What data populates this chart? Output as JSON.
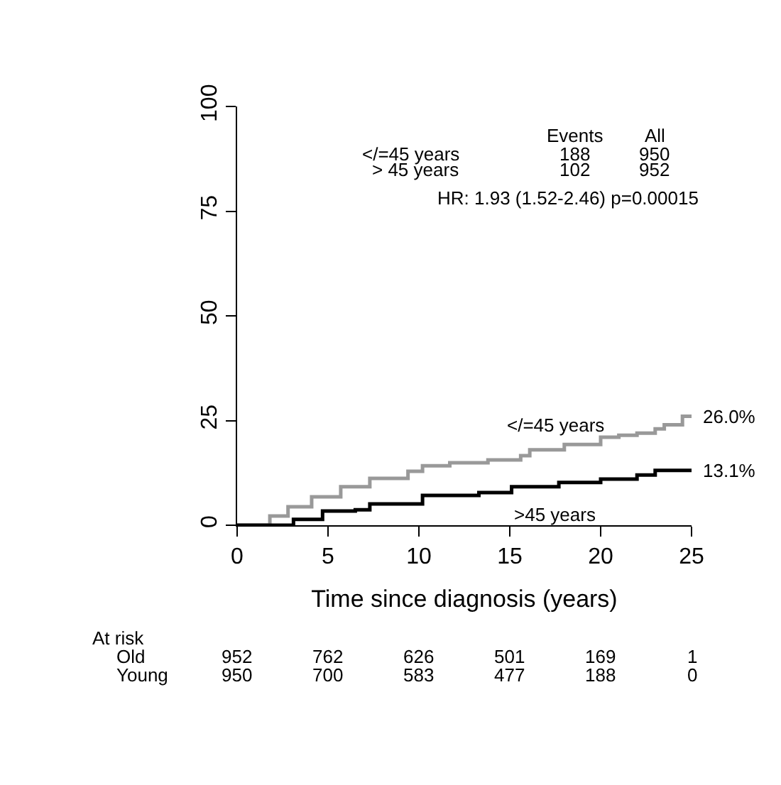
{
  "chart_data": {
    "type": "step",
    "xlabel": "Time since diagnosis (years)",
    "xlim": [
      0,
      25
    ],
    "xticks": [
      0,
      5,
      10,
      15,
      20,
      25
    ],
    "ylim": [
      0,
      100
    ],
    "yticks": [
      0,
      25,
      50,
      75,
      100
    ],
    "marker": "none",
    "line_style": "solid",
    "series": [
      {
        "color": "#999999",
        "x": [
          0,
          0.9,
          1.8,
          2.8,
          4.1,
          5.7,
          7.3,
          9.4,
          10.2,
          11.7,
          13.8,
          15.6,
          16.1,
          18,
          20,
          21,
          22,
          23,
          23.5,
          24.5,
          25
        ],
        "values": [
          0,
          0,
          2.2,
          4.4,
          6.8,
          9.2,
          11.2,
          12.9,
          14.2,
          14.9,
          15.6,
          16.6,
          18,
          19.3,
          21,
          21.5,
          22,
          23,
          24,
          26,
          26
        ]
      },
      {
        "color": "#000000",
        "x": [
          0,
          1,
          3.1,
          4.7,
          6.5,
          7.3,
          10.2,
          13.3,
          15.1,
          17.7,
          20,
          22,
          23,
          25
        ],
        "values": [
          0,
          0,
          1.4,
          3.4,
          3.7,
          5.1,
          7.1,
          7.8,
          9.2,
          10.2,
          11,
          12,
          13.1,
          13.1
        ]
      }
    ],
    "annotations": [
      "Events",
      "All",
      "</=45 years",
      "188",
      "950",
      "> 45 years",
      "102",
      "952",
      "HR: 1.93 (1.52-2.46) p=0.00015",
      "</=45 years",
      ">45 years",
      {
        "text": "26.0%",
        "x": 25,
        "y": 26
      },
      {
        "text": "13.1%",
        "x": 25,
        "y": 13.1
      },
      "At risk",
      "Old",
      "952",
      "762",
      "626",
      "501",
      "169",
      "1",
      "Young",
      "950",
      "700",
      "583",
      "477",
      "188",
      "0"
    ]
  }
}
